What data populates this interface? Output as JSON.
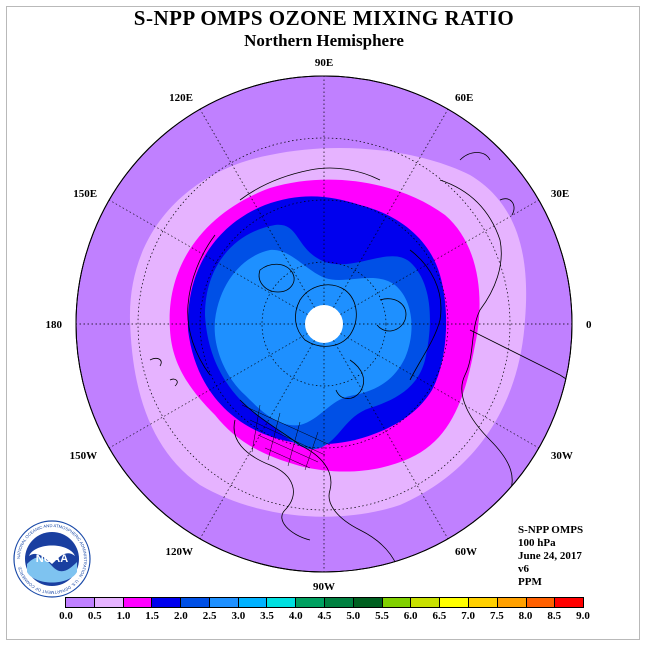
{
  "title": "S-NPP OMPS OZONE MIXING RATIO",
  "subtitle": "Northern Hemisphere",
  "longitude_labels": [
    "90E",
    "60E",
    "30E",
    "0",
    "30W",
    "60W",
    "90W",
    "120W",
    "150W",
    "180",
    "150E",
    "120E"
  ],
  "info": {
    "instrument": "S-NPP OMPS",
    "level": "100 hPa",
    "date": "June 24, 2017",
    "version": "v6",
    "units": "PPM"
  },
  "colorbar": {
    "ticks": [
      "0.0",
      "0.5",
      "1.0",
      "1.5",
      "2.0",
      "2.5",
      "3.0",
      "3.5",
      "4.0",
      "4.5",
      "5.0",
      "5.5",
      "6.0",
      "6.5",
      "7.0",
      "7.5",
      "8.0",
      "8.5",
      "9.0"
    ],
    "colors": [
      "#c080ff",
      "#e6b3ff",
      "#ff00ff",
      "#0000ee",
      "#0050e6",
      "#1e90ff",
      "#00b2ff",
      "#00e0e0",
      "#00a060",
      "#008040",
      "#006020",
      "#80d000",
      "#c8e000",
      "#ffff00",
      "#ffd000",
      "#ffa000",
      "#ff6000",
      "#ff0000",
      "#8b5a2b"
    ]
  },
  "logo": {
    "text": "NOAA",
    "ring_text": "NATIONAL OCEANIC AND ATMOSPHERIC ADMINISTRATION · U.S. DEPARTMENT OF COMMERCE"
  },
  "map_colors": {
    "outer": "#c080ff",
    "band_0_5": "#e6b3ff",
    "band_1_0": "#ff00ff",
    "band_1_5": "#0000ee",
    "band_2_0": "#0050e6",
    "band_2_5": "#1e90ff",
    "missing": "#ffffff"
  }
}
